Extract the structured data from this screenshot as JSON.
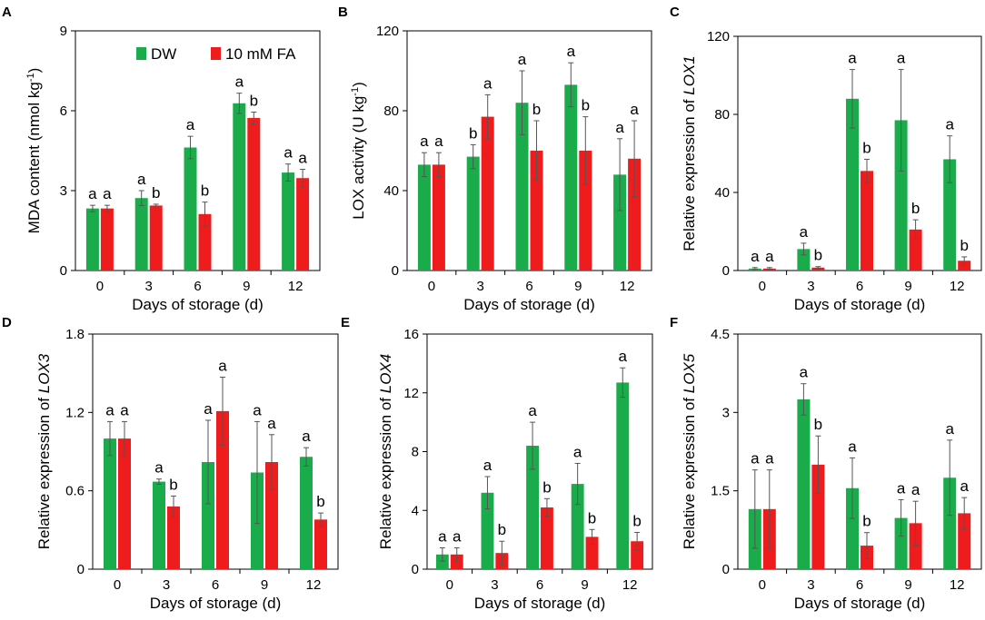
{
  "colors": {
    "DW": "#1aab4b",
    "FA": "#ee1c1c",
    "error_bar": "#555555"
  },
  "legend": [
    {
      "key": "DW",
      "label": "DW"
    },
    {
      "key": "FA",
      "label": "10 mM FA"
    }
  ],
  "chart_data": [
    {
      "panel": "A",
      "type": "bar",
      "ylabel": "MDA content (nmol kg",
      "ylabel_sup": "-1",
      "ylabel_tail": ")",
      "ylabel_gene": "",
      "xlabel": "Days of storage (d)",
      "categories": [
        "0",
        "3",
        "6",
        "9",
        "12"
      ],
      "ylim": [
        0,
        9
      ],
      "yticks": [
        0,
        3,
        6,
        9
      ],
      "ytick_labels": [
        "0",
        "3",
        "6",
        "9"
      ],
      "series": [
        {
          "name": "DW",
          "values": [
            2.33,
            2.72,
            4.62,
            6.28,
            3.68
          ],
          "errors": [
            0.12,
            0.28,
            0.42,
            0.38,
            0.32
          ],
          "labels": [
            "a",
            "a",
            "a",
            "a",
            "a"
          ]
        },
        {
          "name": "10 mM FA",
          "values": [
            2.33,
            2.44,
            2.12,
            5.73,
            3.47
          ],
          "errors": [
            0.12,
            0.05,
            0.45,
            0.22,
            0.33
          ],
          "labels": [
            "a",
            "b",
            "b",
            "b",
            "a"
          ]
        }
      ]
    },
    {
      "panel": "B",
      "type": "bar",
      "ylabel": "LOX activity (U kg",
      "ylabel_sup": "-1",
      "ylabel_tail": ")",
      "ylabel_gene": "",
      "xlabel": "Days of storage (d)",
      "categories": [
        "0",
        "3",
        "6",
        "9",
        "12"
      ],
      "ylim": [
        0,
        120
      ],
      "yticks": [
        0,
        40,
        80,
        120
      ],
      "ytick_labels": [
        "0",
        "40",
        "80",
        "120"
      ],
      "series": [
        {
          "name": "DW",
          "values": [
            53,
            57,
            84,
            93,
            48
          ],
          "errors": [
            6,
            6,
            16,
            11,
            18
          ],
          "labels": [
            "a",
            "b",
            "a",
            "a",
            "a"
          ]
        },
        {
          "name": "10 mM FA",
          "values": [
            53,
            77,
            60,
            60,
            56
          ],
          "errors": [
            6,
            11,
            15,
            17,
            19
          ],
          "labels": [
            "a",
            "a",
            "b",
            "b",
            "a"
          ]
        }
      ]
    },
    {
      "panel": "C",
      "type": "bar",
      "ylabel": "Relative expression of ",
      "ylabel_sup": "",
      "ylabel_tail": "",
      "ylabel_gene": "LOX1",
      "xlabel": "Days of storage (d)",
      "categories": [
        "0",
        "3",
        "6",
        "9",
        "12"
      ],
      "ylim": [
        0,
        120
      ],
      "yticks": [
        0,
        40,
        80,
        120
      ],
      "ytick_labels": [
        "0",
        "40",
        "80",
        "120"
      ],
      "series": [
        {
          "name": "DW",
          "values": [
            1,
            11,
            88,
            77,
            57
          ],
          "errors": [
            0.5,
            3,
            15,
            26,
            12
          ],
          "labels": [
            "a",
            "a",
            "a",
            "a",
            "a"
          ]
        },
        {
          "name": "10 mM FA",
          "values": [
            1,
            1.5,
            51,
            21,
            5
          ],
          "errors": [
            0.5,
            0.5,
            6,
            5,
            2
          ],
          "labels": [
            "a",
            "b",
            "b",
            "b",
            "b"
          ]
        }
      ]
    },
    {
      "panel": "D",
      "type": "bar",
      "ylabel": "Relative expression of ",
      "ylabel_sup": "",
      "ylabel_tail": "",
      "ylabel_gene": "LOX3",
      "xlabel": "Days of storage (d)",
      "categories": [
        "0",
        "3",
        "6",
        "9",
        "12"
      ],
      "ylim": [
        0,
        1.8
      ],
      "yticks": [
        0,
        0.6,
        1.2,
        1.8
      ],
      "ytick_labels": [
        "0",
        "0.6",
        "1.2",
        "1.8"
      ],
      "series": [
        {
          "name": "DW",
          "values": [
            1.0,
            0.67,
            0.82,
            0.74,
            0.86
          ],
          "errors": [
            0.13,
            0.02,
            0.32,
            0.39,
            0.07
          ],
          "labels": [
            "a",
            "a",
            "a",
            "a",
            "a"
          ]
        },
        {
          "name": "10 mM FA",
          "values": [
            1.0,
            0.48,
            1.21,
            0.82,
            0.38
          ],
          "errors": [
            0.13,
            0.08,
            0.26,
            0.21,
            0.05
          ],
          "labels": [
            "a",
            "b",
            "a",
            "a",
            "b"
          ]
        }
      ]
    },
    {
      "panel": "E",
      "type": "bar",
      "ylabel": "Relative expression of ",
      "ylabel_sup": "",
      "ylabel_tail": "",
      "ylabel_gene": "LOX4",
      "xlabel": "Days of storage (d)",
      "categories": [
        "0",
        "3",
        "6",
        "9",
        "12"
      ],
      "ylim": [
        0,
        16
      ],
      "yticks": [
        0,
        4,
        8,
        12,
        16
      ],
      "ytick_labels": [
        "0",
        "4",
        "8",
        "12",
        "16"
      ],
      "series": [
        {
          "name": "DW",
          "values": [
            1.0,
            5.2,
            8.4,
            5.8,
            12.7
          ],
          "errors": [
            0.45,
            1.1,
            1.6,
            1.4,
            1.0
          ],
          "labels": [
            "a",
            "a",
            "a",
            "a",
            "a"
          ]
        },
        {
          "name": "10 mM FA",
          "values": [
            1.0,
            1.1,
            4.2,
            2.2,
            1.9
          ],
          "errors": [
            0.45,
            0.8,
            0.6,
            0.5,
            0.6
          ],
          "labels": [
            "a",
            "b",
            "b",
            "b",
            "b"
          ]
        }
      ]
    },
    {
      "panel": "F",
      "type": "bar",
      "ylabel": "Relative expression of ",
      "ylabel_sup": "",
      "ylabel_tail": "",
      "ylabel_gene": "LOX5",
      "xlabel": "Days of storage (d)",
      "categories": [
        "0",
        "3",
        "6",
        "9",
        "12"
      ],
      "ylim": [
        0,
        4.5
      ],
      "yticks": [
        0,
        1.5,
        3,
        4.5
      ],
      "ytick_labels": [
        "0",
        "1.5",
        "3",
        "4.5"
      ],
      "series": [
        {
          "name": "DW",
          "values": [
            1.15,
            3.25,
            1.55,
            0.98,
            1.75
          ],
          "errors": [
            0.75,
            0.3,
            0.58,
            0.35,
            0.72
          ],
          "labels": [
            "a",
            "a",
            "a",
            "a",
            "a"
          ]
        },
        {
          "name": "10 mM FA",
          "values": [
            1.15,
            2.0,
            0.45,
            0.88,
            1.07
          ],
          "errors": [
            0.75,
            0.55,
            0.25,
            0.42,
            0.3
          ],
          "labels": [
            "a",
            "b",
            "b",
            "a",
            "a"
          ]
        }
      ]
    }
  ]
}
